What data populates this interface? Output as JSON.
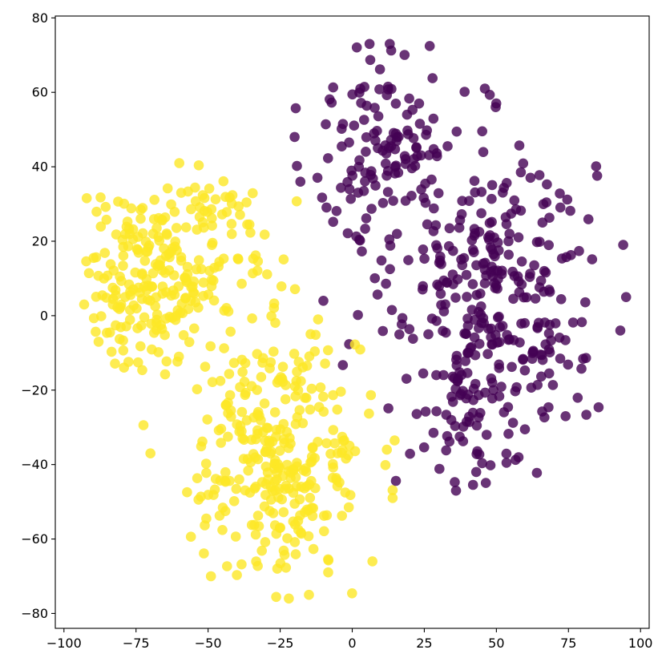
{
  "colors": {
    "purple": "#440154",
    "yellow": "#fde725",
    "axis": "#000000",
    "background": "#ffffff"
  },
  "chart_data": {
    "type": "scatter",
    "title": "",
    "xlabel": "",
    "ylabel": "",
    "xlim": [
      -103,
      103
    ],
    "ylim": [
      -84,
      80.5
    ],
    "xticks": [
      -100,
      -75,
      -50,
      -25,
      0,
      25,
      50,
      75,
      100
    ],
    "yticks": [
      -80,
      -60,
      -40,
      -20,
      0,
      20,
      40,
      60,
      80
    ],
    "grid": false,
    "legend": "none",
    "marker_alpha": 0.8,
    "clusters": [
      {
        "color": "purple",
        "center": [
          50,
          8
        ],
        "spread": [
          17,
          19
        ],
        "count": 270,
        "xrange": [
          -20,
          95
        ],
        "yrange": [
          -47,
          73
        ]
      },
      {
        "color": "purple",
        "center": [
          12,
          45
        ],
        "spread": [
          13,
          14
        ],
        "count": 130,
        "xrange": [
          -20,
          95
        ],
        "yrange": [
          -47,
          73
        ]
      },
      {
        "color": "purple",
        "center": [
          40,
          -25
        ],
        "spread": [
          16,
          11
        ],
        "count": 70,
        "xrange": [
          -20,
          95
        ],
        "yrange": [
          -47,
          73
        ]
      },
      {
        "color": "yellow",
        "center": [
          -70,
          10
        ],
        "spread": [
          12,
          12
        ],
        "count": 210,
        "xrange": [
          -93,
          15
        ],
        "yrange": [
          -76,
          41
        ]
      },
      {
        "color": "yellow",
        "center": [
          -25,
          -38
        ],
        "spread": [
          14,
          16
        ],
        "count": 300,
        "xrange": [
          -93,
          15
        ],
        "yrange": [
          -76,
          41
        ]
      },
      {
        "color": "yellow",
        "center": [
          -45,
          20
        ],
        "spread": [
          10,
          12
        ],
        "count": 60,
        "xrange": [
          -93,
          15
        ],
        "yrange": [
          -76,
          41
        ]
      }
    ],
    "anchors": [
      {
        "color": "purple",
        "x": 6,
        "y": 73
      },
      {
        "color": "purple",
        "x": 13,
        "y": 73
      },
      {
        "color": "purple",
        "x": 46,
        "y": 61
      },
      {
        "color": "purple",
        "x": 94,
        "y": 19
      },
      {
        "color": "purple",
        "x": 95,
        "y": 5
      },
      {
        "color": "purple",
        "x": 93,
        "y": -4
      },
      {
        "color": "purple",
        "x": 36,
        "y": -47
      },
      {
        "color": "purple",
        "x": 43,
        "y": -42
      },
      {
        "color": "purple",
        "x": -20,
        "y": 48
      },
      {
        "color": "purple",
        "x": -18,
        "y": 36
      },
      {
        "color": "purple",
        "x": -10,
        "y": 4
      },
      {
        "color": "purple",
        "x": 74,
        "y": -27
      },
      {
        "color": "yellow",
        "x": -93,
        "y": 3
      },
      {
        "color": "yellow",
        "x": -60,
        "y": 41
      },
      {
        "color": "yellow",
        "x": -22,
        "y": -76
      },
      {
        "color": "yellow",
        "x": 14,
        "y": -49
      },
      {
        "color": "yellow",
        "x": 12,
        "y": -36
      },
      {
        "color": "yellow",
        "x": -49,
        "y": -70
      },
      {
        "color": "yellow",
        "x": -70,
        "y": -37
      },
      {
        "color": "yellow",
        "x": -88,
        "y": -7
      },
      {
        "color": "yellow",
        "x": 7,
        "y": -66
      },
      {
        "color": "yellow",
        "x": -15,
        "y": -75
      }
    ]
  }
}
